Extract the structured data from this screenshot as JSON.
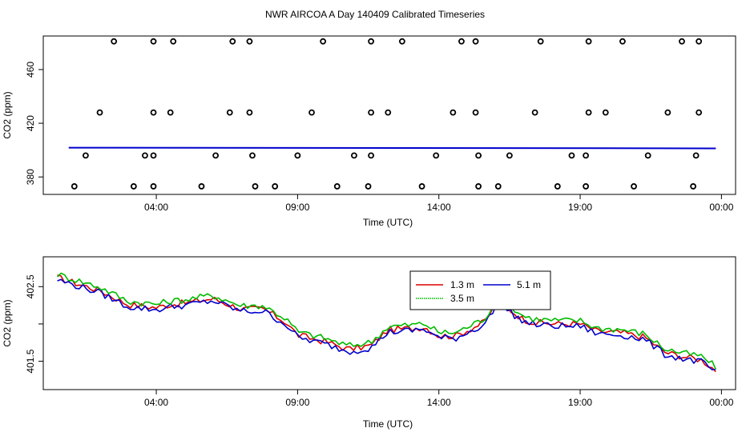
{
  "title": "NWR AIRCOA A  Day 140409  Calibrated Timeseries",
  "chart_data": [
    {
      "type": "scatter",
      "xlabel": "Time (UTC)",
      "ylabel": "CO2 (ppm)",
      "x_unit": "hours since 00:00 UTC",
      "x_range": [
        0,
        24.5
      ],
      "y_range": [
        367,
        485
      ],
      "x_ticks": [
        {
          "v": 4,
          "label": "04:00"
        },
        {
          "v": 9,
          "label": "09:00"
        },
        {
          "v": 14,
          "label": "14:00"
        },
        {
          "v": 19,
          "label": "19:00"
        },
        {
          "v": 24,
          "label": "00:00"
        }
      ],
      "y_ticks": [
        {
          "v": 380,
          "label": "380"
        },
        {
          "v": 420,
          "label": "420"
        },
        {
          "v": 460,
          "label": "460"
        }
      ],
      "calibration_points": [
        {
          "t": 2.5,
          "v": 481
        },
        {
          "t": 3.9,
          "v": 481
        },
        {
          "t": 4.6,
          "v": 481
        },
        {
          "t": 6.7,
          "v": 481
        },
        {
          "t": 7.3,
          "v": 481
        },
        {
          "t": 9.9,
          "v": 481
        },
        {
          "t": 11.6,
          "v": 481
        },
        {
          "t": 12.7,
          "v": 481
        },
        {
          "t": 14.8,
          "v": 481
        },
        {
          "t": 15.3,
          "v": 481
        },
        {
          "t": 17.6,
          "v": 481
        },
        {
          "t": 19.3,
          "v": 481
        },
        {
          "t": 20.5,
          "v": 481
        },
        {
          "t": 22.6,
          "v": 481
        },
        {
          "t": 23.2,
          "v": 481
        },
        {
          "t": 2.0,
          "v": 428
        },
        {
          "t": 3.9,
          "v": 428
        },
        {
          "t": 4.5,
          "v": 428
        },
        {
          "t": 6.6,
          "v": 428
        },
        {
          "t": 7.3,
          "v": 428
        },
        {
          "t": 9.5,
          "v": 428
        },
        {
          "t": 11.6,
          "v": 428
        },
        {
          "t": 12.2,
          "v": 428
        },
        {
          "t": 14.5,
          "v": 428
        },
        {
          "t": 15.3,
          "v": 428
        },
        {
          "t": 17.4,
          "v": 428
        },
        {
          "t": 19.3,
          "v": 428
        },
        {
          "t": 19.9,
          "v": 428
        },
        {
          "t": 22.1,
          "v": 428
        },
        {
          "t": 23.2,
          "v": 428
        },
        {
          "t": 1.5,
          "v": 396
        },
        {
          "t": 3.6,
          "v": 396
        },
        {
          "t": 3.9,
          "v": 396
        },
        {
          "t": 6.1,
          "v": 396
        },
        {
          "t": 7.4,
          "v": 396
        },
        {
          "t": 9.0,
          "v": 396
        },
        {
          "t": 11.0,
          "v": 396
        },
        {
          "t": 11.6,
          "v": 396
        },
        {
          "t": 13.9,
          "v": 396
        },
        {
          "t": 15.4,
          "v": 396
        },
        {
          "t": 16.5,
          "v": 396
        },
        {
          "t": 18.7,
          "v": 396
        },
        {
          "t": 19.2,
          "v": 396
        },
        {
          "t": 21.4,
          "v": 396
        },
        {
          "t": 23.1,
          "v": 396
        },
        {
          "t": 1.1,
          "v": 373
        },
        {
          "t": 3.2,
          "v": 373
        },
        {
          "t": 3.9,
          "v": 373
        },
        {
          "t": 5.6,
          "v": 373
        },
        {
          "t": 7.5,
          "v": 373
        },
        {
          "t": 8.2,
          "v": 373
        },
        {
          "t": 10.4,
          "v": 373
        },
        {
          "t": 11.5,
          "v": 373
        },
        {
          "t": 13.4,
          "v": 373
        },
        {
          "t": 15.4,
          "v": 373
        },
        {
          "t": 16.1,
          "v": 373
        },
        {
          "t": 18.2,
          "v": 373
        },
        {
          "t": 19.2,
          "v": 373
        },
        {
          "t": 20.9,
          "v": 373
        },
        {
          "t": 23.0,
          "v": 373
        }
      ],
      "baseline": {
        "t_start": 0.9,
        "t_end": 23.8,
        "v_start": 401.8,
        "v_end": 401.3
      }
    },
    {
      "type": "line",
      "xlabel": "Time (UTC)",
      "ylabel": "CO2 (ppm)",
      "x_unit": "hours since 00:00 UTC",
      "x_range": [
        0,
        24.5
      ],
      "y_range": [
        401.12,
        402.9
      ],
      "x_ticks": [
        {
          "v": 4,
          "label": "04:00"
        },
        {
          "v": 9,
          "label": "09:00"
        },
        {
          "v": 14,
          "label": "14:00"
        },
        {
          "v": 19,
          "label": "19:00"
        },
        {
          "v": 24,
          "label": "00:00"
        }
      ],
      "y_ticks": [
        {
          "v": 401.5,
          "label": "401.5"
        },
        {
          "v": 402.0,
          "label": ""
        },
        {
          "v": 402.5,
          "label": "402.5"
        }
      ],
      "legend": {
        "position": "top-center",
        "entries": [
          {
            "name": "1.3 m",
            "color": "#dd0000"
          },
          {
            "name": "5.1 m",
            "color": "#0000cc"
          },
          {
            "name": "3.5 m",
            "color": "#00bb00"
          }
        ]
      },
      "x": [
        0.5,
        2,
        3,
        4,
        4.5,
        5,
        6,
        7,
        7.8,
        8.6,
        9,
        10,
        10.8,
        11.6,
        12.2,
        13,
        13.5,
        14,
        14.6,
        15.6,
        16.1,
        17,
        17.4,
        18.2,
        19,
        19.6,
        20.5,
        21.3,
        22,
        22.7,
        23.3,
        23.8
      ],
      "series": [
        {
          "name": "1.3 m",
          "color": "#dd0000",
          "offset": 0.0,
          "values": [
            402.62,
            402.45,
            402.26,
            402.22,
            402.26,
            402.28,
            402.34,
            402.2,
            402.2,
            402.02,
            401.85,
            401.76,
            401.66,
            401.71,
            401.92,
            401.94,
            401.96,
            401.84,
            401.84,
            402.02,
            402.3,
            402.06,
            402.02,
            402.0,
            402.0,
            401.9,
            401.88,
            401.82,
            401.62,
            401.56,
            401.52,
            401.38
          ]
        },
        {
          "name": "3.5 m",
          "color": "#00bb00",
          "offset": 0.045,
          "values": [
            402.62,
            402.45,
            402.26,
            402.22,
            402.26,
            402.28,
            402.34,
            402.2,
            402.2,
            402.02,
            401.85,
            401.76,
            401.66,
            401.71,
            401.92,
            401.94,
            401.96,
            401.84,
            401.84,
            402.02,
            402.3,
            402.06,
            402.02,
            402.0,
            402.0,
            401.9,
            401.88,
            401.82,
            401.62,
            401.56,
            401.52,
            401.38
          ]
        },
        {
          "name": "5.1 m",
          "color": "#0000cc",
          "offset": -0.03,
          "values": [
            402.62,
            402.45,
            402.26,
            402.22,
            402.26,
            402.28,
            402.34,
            402.2,
            402.2,
            402.02,
            401.85,
            401.76,
            401.66,
            401.71,
            401.92,
            401.94,
            401.96,
            401.84,
            401.84,
            402.02,
            402.3,
            402.06,
            402.02,
            402.0,
            402.0,
            401.9,
            401.88,
            401.82,
            401.62,
            401.56,
            401.52,
            401.38
          ]
        }
      ]
    }
  ]
}
